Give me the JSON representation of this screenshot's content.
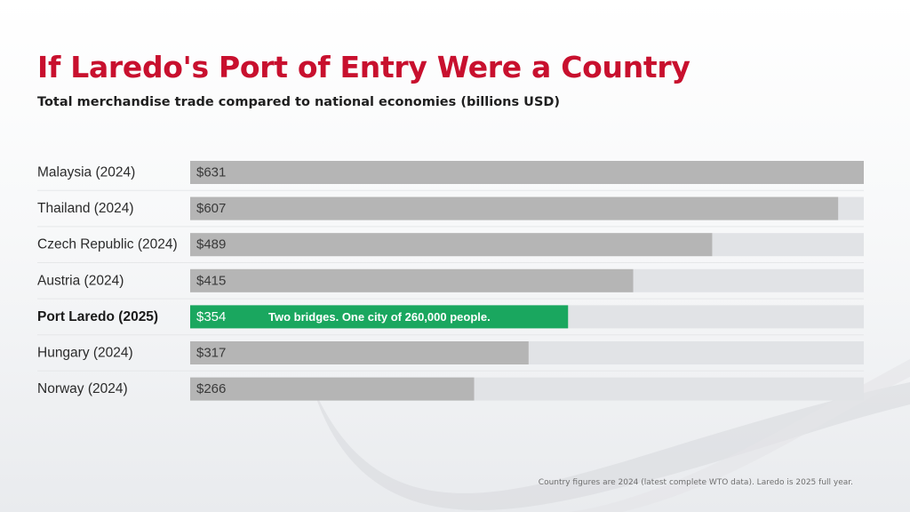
{
  "title": "If Laredo's Port of Entry Were a Country",
  "subtitle": "Total merchandise trade compared to national economies (billions USD)",
  "footnote": "Country figures are 2024 (latest complete WTO data). Laredo is 2025 full year.",
  "colors": {
    "title": "#c8102e",
    "bar": "#b5b5b5",
    "highlight_bar": "#1aa75f",
    "track": "#e1e3e6"
  },
  "chart_data": {
    "type": "bar",
    "orientation": "horizontal",
    "categories": [
      "Malaysia (2024)",
      "Thailand (2024)",
      "Czech Republic (2024)",
      "Austria (2024)",
      "Port Laredo (2025)",
      "Hungary (2024)",
      "Norway (2024)"
    ],
    "values": [
      631,
      607,
      489,
      415,
      354,
      317,
      266
    ],
    "value_labels": [
      "$631",
      "$607",
      "$489",
      "$415",
      "$354",
      "$317",
      "$266"
    ],
    "highlight_index": 4,
    "highlight_annotation": "Two bridges. One city of 260,000 people.",
    "xlim": [
      0,
      631
    ],
    "grid": false,
    "legend": "none"
  }
}
